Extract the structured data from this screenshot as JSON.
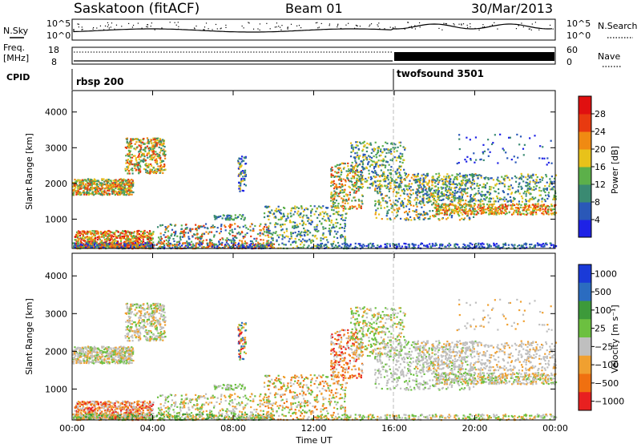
{
  "header": {
    "station": "Saskatoon (fitACF)",
    "beam": "Beam 01",
    "date": "30/Mar/2013"
  },
  "summary_panels": {
    "nsky_label": "N.Sky",
    "nsky_top": "10^5",
    "nsky_bottom": "10^0",
    "nsearch_label": "N.Search",
    "nsearch_top": "10^5",
    "nsearch_bottom": "10^0",
    "freq_label": "Freq.",
    "freq_unit": "[MHz]",
    "freq_top": "18",
    "freq_bottom": "8",
    "nave_label": "Nave",
    "nave_top": "60",
    "nave_bottom": "0",
    "cpid_label": "CPID",
    "cpid_1": "rbsp 200",
    "cpid_2": "twofsound 3501"
  },
  "chart_data": [
    {
      "type": "heatmap",
      "ylabel": "Slant Range [km]",
      "colorbar_label": "Power [dB]",
      "colorbar_ticks": [
        "4",
        "8",
        "12",
        "16",
        "20",
        "24",
        "28"
      ],
      "colorbar_colors": [
        "#1e22e6",
        "#2a58b8",
        "#3a8a72",
        "#5cb04a",
        "#e8c21a",
        "#f08a12",
        "#e83a10",
        "#e01010"
      ],
      "y_ticks": [
        "1000",
        "2000",
        "3000",
        "4000"
      ],
      "ylim": [
        180,
        4600
      ]
    },
    {
      "type": "heatmap",
      "ylabel": "Slant Range [km]",
      "xlabel": "Time UT",
      "colorbar_label": "Velocity [m s⁻¹]",
      "colorbar_ticks": [
        "1000",
        "500",
        "100",
        "25",
        "−25",
        "−100",
        "−500",
        "−1000"
      ],
      "colorbar_colors": [
        "#1a3ad8",
        "#2b6cc0",
        "#3d9a3a",
        "#6cc040",
        "#bfbfbf",
        "#f0a030",
        "#f07010",
        "#e82020"
      ],
      "y_ticks": [
        "1000",
        "2000",
        "3000",
        "4000"
      ],
      "ylim": [
        180,
        4600
      ],
      "x_ticks": [
        "00:00",
        "04:00",
        "08:00",
        "12:00",
        "16:00",
        "20:00",
        "00:00"
      ]
    }
  ]
}
